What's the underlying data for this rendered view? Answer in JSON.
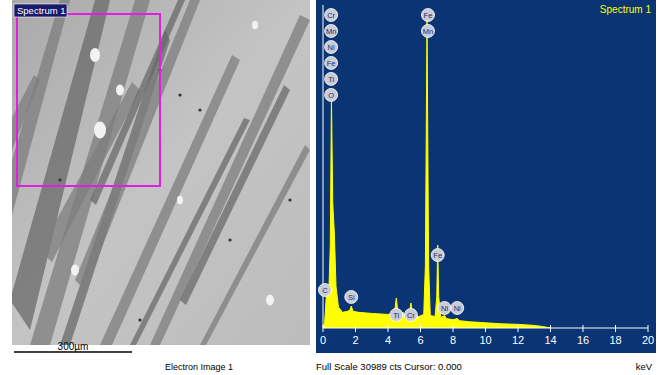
{
  "electron_image": {
    "label": "Spectrum 1",
    "scale_bar": "300µm",
    "caption": "Electron Image 1"
  },
  "chart_data": {
    "type": "area",
    "title": "Spectrum 1",
    "xlabel": "keV",
    "caption": "Full Scale 30989 cts Cursor: 0.000",
    "color": "#ffff00",
    "xlim": [
      0,
      20
    ],
    "xticks": [
      0,
      2,
      4,
      6,
      8,
      10,
      12,
      14,
      16,
      18,
      20
    ],
    "ylim": [
      0,
      30989
    ],
    "tick_labels": "x",
    "x": [
      0,
      0.1,
      0.2,
      0.28,
      0.35,
      0.45,
      0.52,
      0.6,
      0.7,
      0.8,
      0.95,
      1.2,
      1.5,
      1.65,
      1.74,
      1.85,
      2.2,
      3,
      4,
      4.4,
      4.51,
      4.62,
      4.93,
      5.0,
      5.3,
      5.41,
      5.52,
      5.9,
      6.2,
      6.3,
      6.4,
      6.5,
      6.6,
      6.9,
      7.0,
      7.06,
      7.12,
      7.25,
      7.48,
      7.6,
      8.0,
      8.26,
      8.4,
      9,
      10,
      11,
      12,
      13,
      13.5,
      14
    ],
    "values": [
      0,
      500,
      3000,
      4000,
      3000,
      8000,
      22350,
      12000,
      9000,
      4000,
      2000,
      1500,
      1600,
      1700,
      2100,
      1600,
      1500,
      1400,
      1300,
      1400,
      2880,
      1400,
      1500,
      1200,
      1200,
      2400,
      1200,
      1100,
      1300,
      6000,
      29550,
      6000,
      1200,
      1100,
      3000,
      7960,
      3000,
      1000,
      1200,
      900,
      800,
      900,
      700,
      600,
      500,
      400,
      350,
      250,
      150,
      0
    ],
    "annotations": [
      {
        "text": "Cr",
        "x": 0.5,
        "y": 30030
      },
      {
        "text": "Mn",
        "x": 0.5,
        "y": 28500
      },
      {
        "text": "Ni",
        "x": 0.5,
        "y": 26960
      },
      {
        "text": "Fe",
        "x": 0.5,
        "y": 25430
      },
      {
        "text": "Ti",
        "x": 0.5,
        "y": 23900
      },
      {
        "text": "O",
        "x": 0.5,
        "y": 22360
      },
      {
        "text": "Fe",
        "x": 6.46,
        "y": 30030
      },
      {
        "text": "Mn",
        "x": 6.46,
        "y": 28500
      },
      {
        "text": "C",
        "x": 0.12,
        "y": 3645
      },
      {
        "text": "Si",
        "x": 1.74,
        "y": 2975
      },
      {
        "text": "Ti",
        "x": 4.51,
        "y": 1250
      },
      {
        "text": "Cr",
        "x": 5.41,
        "y": 1250
      },
      {
        "text": "Fe",
        "x": 7.06,
        "y": 7000
      },
      {
        "text": "Ni",
        "x": 7.48,
        "y": 1920
      },
      {
        "text": "Ni",
        "x": 8.26,
        "y": 1920
      }
    ]
  }
}
